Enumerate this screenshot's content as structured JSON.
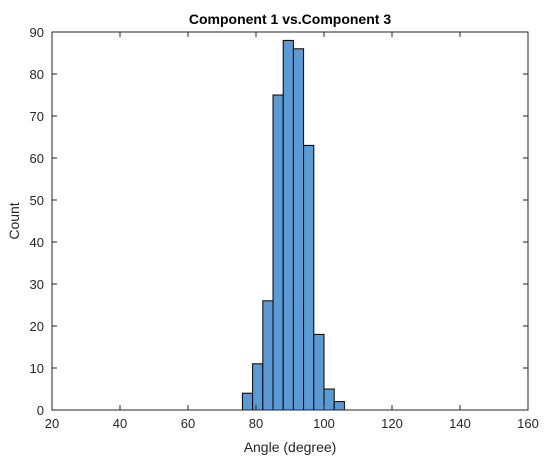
{
  "chart_data": {
    "type": "bar",
    "title": "Component 1 vs.Component 3",
    "xlabel": "Angle (degree)",
    "ylabel": "Count",
    "xlim": [
      20,
      160
    ],
    "ylim": [
      0,
      90
    ],
    "x_ticks": [
      20,
      40,
      60,
      80,
      100,
      120,
      140,
      160
    ],
    "y_ticks": [
      0,
      10,
      20,
      30,
      40,
      50,
      60,
      70,
      80,
      90
    ],
    "bin_edges": [
      76,
      79,
      82,
      85,
      88,
      91,
      94,
      97,
      100,
      103,
      106
    ],
    "values": [
      4,
      11,
      26,
      75,
      88,
      86,
      63,
      18,
      5,
      2
    ],
    "bar_color": "#5b9bd5",
    "grid": false
  }
}
